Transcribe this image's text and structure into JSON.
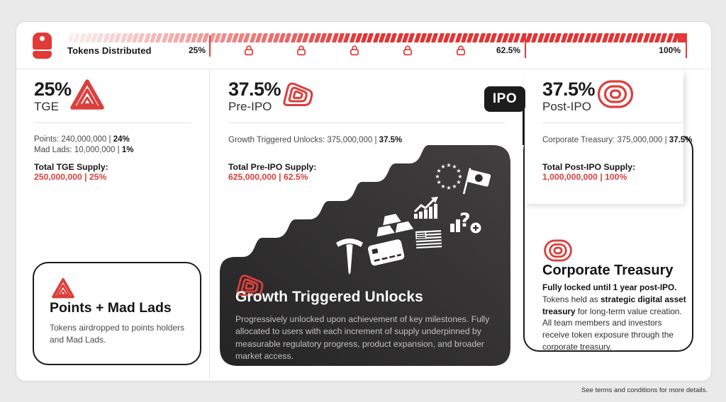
{
  "accent_red": "#e23a36",
  "icon_red": "#d9403c",
  "topbar": {
    "icon": "backpack-icon",
    "label": "Tokens Distributed",
    "markers": [
      "25%",
      "62.5%",
      "100%"
    ],
    "locks_count": 5,
    "lock_icon": "lock-icon",
    "bar_color_start": "#fcedec",
    "bar_color_end": "#e23434"
  },
  "tge": {
    "pct": "25%",
    "name": "TGE",
    "icon": "tge-triangle-icon",
    "stat1_text": "Points: 240,000,000 | ",
    "stat1_bold": "24%",
    "stat2_text": "Mad Lads: 10,000,000 | ",
    "stat2_bold": "1%",
    "total_label": "Total TGE Supply:",
    "total_value": "250,000,000 | 25%",
    "box_title": "Points + Mad Lads",
    "box_desc": "Tokens airdropped to points holders and Mad Lads."
  },
  "preipo": {
    "pct": "37.5%",
    "name": "Pre-IPO",
    "icon": "preipo-shape-icon",
    "stat_text": "Growth Triggered Unlocks: 375,000,000 | ",
    "stat_bold": "37.5%",
    "total_label": "Total Pre-IPO Supply:",
    "total_value": "625,000,000 | 62.5%",
    "badge": "IPO",
    "card_title": "Growth Triggered Unlocks",
    "card_desc": "Progressively unlocked upon achievement of key milestones. Fully allocated to users with each increment of supply underpinned by measurable regulatory progress, product expansion, and broader market access.",
    "milestone_icons": [
      "eu-stars-icon",
      "japan-flag-icon",
      "growth-chart-icon",
      "mystery-milestone-icon",
      "gold-bars-icon",
      "us-flag-icon",
      "tesla-icon",
      "credit-card-icon"
    ]
  },
  "postipo": {
    "pct": "37.5%",
    "name": "Post-IPO",
    "icon": "postipo-rings-icon",
    "stat_text": "Corporate Treasury: 375,000,000 | ",
    "stat_bold": "37.5%",
    "total_label": "Total Post-IPO Supply:",
    "total_value": "1,000,000,000 | 100%",
    "card_title": "Corporate Treasury",
    "para_bold1": "Fully locked until 1 year post-IPO.",
    "para_text1": " Tokens held as ",
    "para_bold2": "strategic digital asset treasury",
    "para_text2": " for long-term value creation. All team members and investors receive token exposure through the corporate treasury."
  },
  "footer": {
    "terms": "See terms and conditions for more details."
  }
}
